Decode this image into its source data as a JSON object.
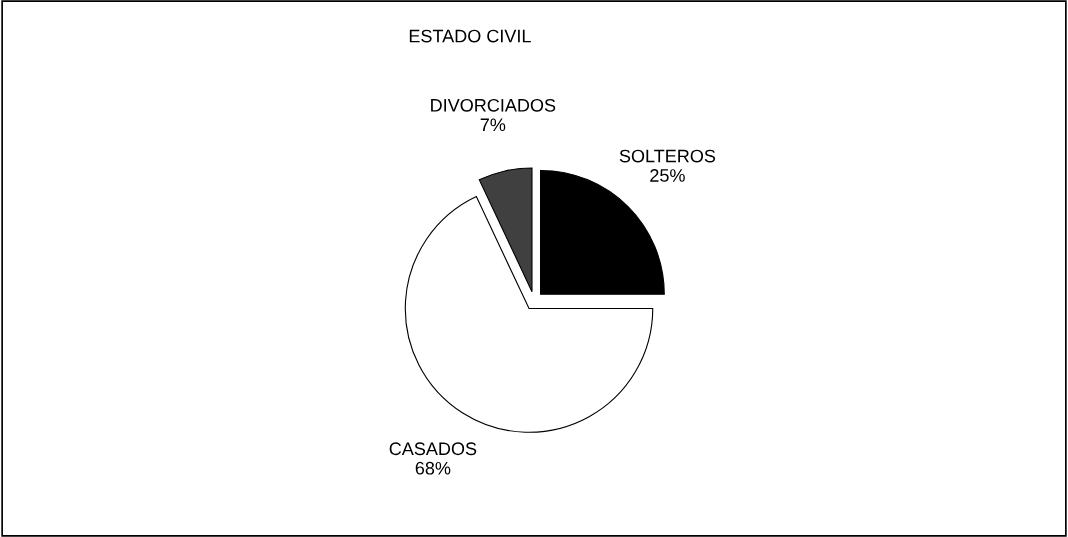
{
  "chart_data": {
    "type": "pie",
    "title": "ESTADO CIVIL",
    "categories": [
      "SOLTEROS",
      "CASADOS",
      "DIVORCIADOS"
    ],
    "values": [
      25,
      68,
      7
    ],
    "value_labels": [
      "25%",
      "68%",
      "7%"
    ],
    "colors": [
      "#000000",
      "#ffffff",
      "#404040"
    ]
  }
}
